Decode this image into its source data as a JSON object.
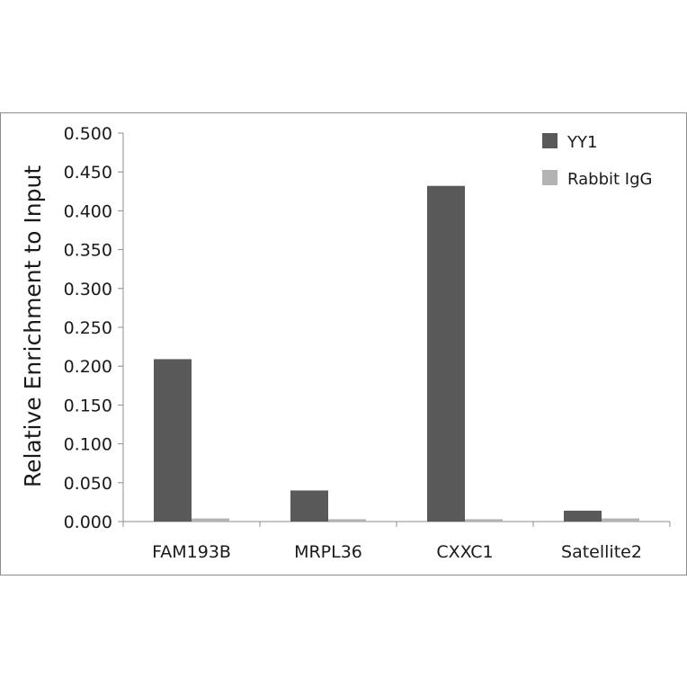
{
  "chart_data": {
    "type": "bar",
    "title": "",
    "xlabel": "",
    "ylabel": "Relative Enrichment to Input",
    "ylim": [
      0,
      0.5
    ],
    "yticks": [
      "0.000",
      "0.050",
      "0.100",
      "0.150",
      "0.200",
      "0.250",
      "0.300",
      "0.350",
      "0.400",
      "0.450",
      "0.500"
    ],
    "categories": [
      "FAM193B",
      "MRPL36",
      "CXXC1",
      "Satellite2"
    ],
    "series": [
      {
        "name": "YY1",
        "values": [
          0.209,
          0.04,
          0.432,
          0.014
        ],
        "color": "#595959"
      },
      {
        "name": "Rabbit IgG",
        "values": [
          0.004,
          0.003,
          0.003,
          0.004
        ],
        "color": "#b3b3b3"
      }
    ],
    "legend_position": "top-right",
    "grid": false
  }
}
